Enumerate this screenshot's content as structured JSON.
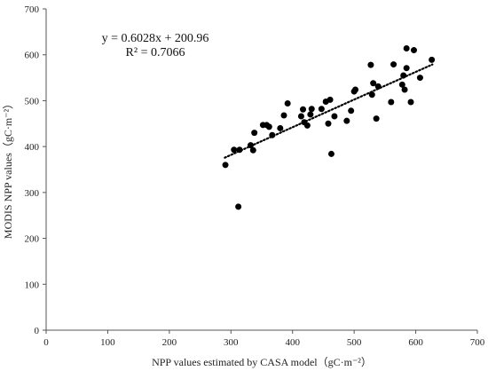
{
  "chart_data": {
    "type": "scatter",
    "xlabel": "NPP values estimated by CASA model（gC·m⁻²）",
    "ylabel": "MODIS NPP values（gC·m⁻²）",
    "xlim": [
      0,
      700
    ],
    "ylim": [
      0,
      700
    ],
    "x_ticks": [
      "0",
      "100",
      "200",
      "300",
      "400",
      "500",
      "600",
      "700"
    ],
    "y_ticks": [
      "0",
      "100",
      "200",
      "300",
      "400",
      "500",
      "600",
      "700"
    ],
    "grid": false,
    "point_color": "#000000",
    "trendline": {
      "style": "dotted",
      "slope": 0.6028,
      "intercept": 200.96,
      "x_range": [
        290,
        627
      ],
      "equation": "y = 0.6028x + 200.96",
      "r_squared": "R² = 0.7066"
    },
    "points": [
      [
        291,
        360
      ],
      [
        305,
        393
      ],
      [
        312,
        269
      ],
      [
        314,
        393
      ],
      [
        332,
        403
      ],
      [
        336,
        392
      ],
      [
        338,
        430
      ],
      [
        352,
        447
      ],
      [
        358,
        447
      ],
      [
        362,
        443
      ],
      [
        367,
        425
      ],
      [
        380,
        440
      ],
      [
        386,
        468
      ],
      [
        392,
        494
      ],
      [
        414,
        466
      ],
      [
        417,
        481
      ],
      [
        419,
        453
      ],
      [
        424,
        446
      ],
      [
        429,
        470
      ],
      [
        431,
        482
      ],
      [
        447,
        482
      ],
      [
        454,
        498
      ],
      [
        458,
        450
      ],
      [
        461,
        502
      ],
      [
        463,
        384
      ],
      [
        468,
        466
      ],
      [
        488,
        456
      ],
      [
        495,
        478
      ],
      [
        500,
        520
      ],
      [
        502,
        524
      ],
      [
        527,
        578
      ],
      [
        529,
        513
      ],
      [
        531,
        538
      ],
      [
        536,
        461
      ],
      [
        539,
        531
      ],
      [
        560,
        497
      ],
      [
        564,
        579
      ],
      [
        578,
        535
      ],
      [
        580,
        555
      ],
      [
        582,
        524
      ],
      [
        585,
        614
      ],
      [
        585,
        571
      ],
      [
        592,
        497
      ],
      [
        597,
        610
      ],
      [
        607,
        550
      ],
      [
        626,
        589
      ]
    ]
  }
}
